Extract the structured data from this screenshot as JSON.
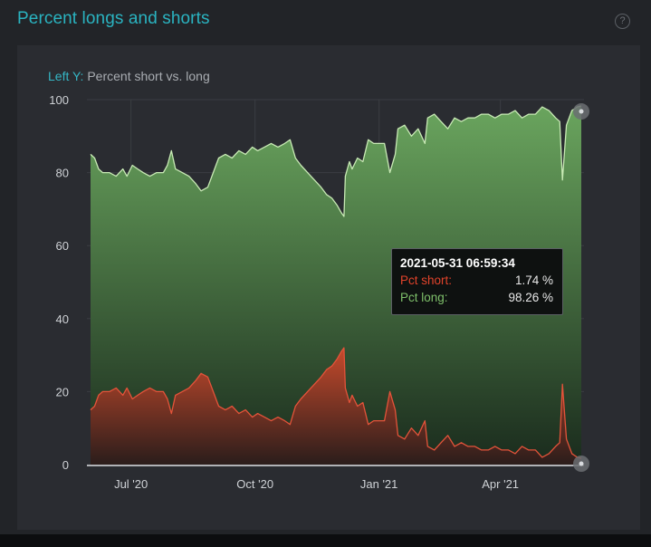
{
  "title": "Percent longs and shorts",
  "help_icon": "?",
  "y_axis_label": {
    "prefix": "Left Y:",
    "text": "Percent short vs. long"
  },
  "tooltip": {
    "timestamp": "2021-05-31 06:59:34",
    "rows": [
      {
        "label": "Pct short:",
        "value": "1.74 %"
      },
      {
        "label": "Pct long:",
        "value": "98.26 %"
      }
    ]
  },
  "colors": {
    "long_line": "#c8eab5",
    "long_fill_top": "#6aa55e",
    "long_fill_bottom": "#1a2b1d",
    "short_line": "#e4533a",
    "short_fill_top": "#c64a2c",
    "short_fill_bottom": "#2b1d1b",
    "accent": "#2ab3c0"
  },
  "chart_data": {
    "type": "area",
    "ylim": [
      0,
      100
    ],
    "y_ticks": [
      "0",
      "20",
      "40",
      "60",
      "80",
      "100"
    ],
    "x_ticks": [
      "Jul '20",
      "Oct '20",
      "Jan '21",
      "Apr '21"
    ],
    "x_range": [
      "2020-06-01",
      "2021-05-31"
    ],
    "grid": true,
    "series": [
      {
        "name": "Pct long",
        "points": [
          [
            "2020-06-01",
            85
          ],
          [
            "2020-06-04",
            84
          ],
          [
            "2020-06-07",
            81
          ],
          [
            "2020-06-10",
            80
          ],
          [
            "2020-06-15",
            80
          ],
          [
            "2020-06-20",
            79
          ],
          [
            "2020-06-25",
            81
          ],
          [
            "2020-06-28",
            79
          ],
          [
            "2020-07-02",
            82
          ],
          [
            "2020-07-06",
            81
          ],
          [
            "2020-07-10",
            80
          ],
          [
            "2020-07-15",
            79
          ],
          [
            "2020-07-20",
            80
          ],
          [
            "2020-07-25",
            80
          ],
          [
            "2020-07-28",
            82
          ],
          [
            "2020-07-31",
            86
          ],
          [
            "2020-08-03",
            81
          ],
          [
            "2020-08-08",
            80
          ],
          [
            "2020-08-13",
            79
          ],
          [
            "2020-08-18",
            77
          ],
          [
            "2020-08-22",
            75
          ],
          [
            "2020-08-27",
            76
          ],
          [
            "2020-08-31",
            80
          ],
          [
            "2020-09-04",
            84
          ],
          [
            "2020-09-09",
            85
          ],
          [
            "2020-09-14",
            84
          ],
          [
            "2020-09-19",
            86
          ],
          [
            "2020-09-24",
            85
          ],
          [
            "2020-09-29",
            87
          ],
          [
            "2020-10-03",
            86
          ],
          [
            "2020-10-08",
            87
          ],
          [
            "2020-10-13",
            88
          ],
          [
            "2020-10-18",
            87
          ],
          [
            "2020-10-23",
            88
          ],
          [
            "2020-10-27",
            89
          ],
          [
            "2020-10-31",
            84
          ],
          [
            "2020-11-04",
            82
          ],
          [
            "2020-11-09",
            80
          ],
          [
            "2020-11-14",
            78
          ],
          [
            "2020-11-19",
            76
          ],
          [
            "2020-11-23",
            74
          ],
          [
            "2020-11-27",
            73
          ],
          [
            "2020-12-01",
            71
          ],
          [
            "2020-12-04",
            69
          ],
          [
            "2020-12-06",
            68
          ],
          [
            "2020-12-07",
            79
          ],
          [
            "2020-12-10",
            83
          ],
          [
            "2020-12-12",
            81
          ],
          [
            "2020-12-16",
            84
          ],
          [
            "2020-12-20",
            83
          ],
          [
            "2020-12-24",
            89
          ],
          [
            "2020-12-28",
            88
          ],
          [
            "2021-01-01",
            88
          ],
          [
            "2021-01-05",
            88
          ],
          [
            "2021-01-09",
            80
          ],
          [
            "2021-01-13",
            85
          ],
          [
            "2021-01-15",
            92
          ],
          [
            "2021-01-20",
            93
          ],
          [
            "2021-01-25",
            90
          ],
          [
            "2021-01-30",
            92
          ],
          [
            "2021-02-04",
            88
          ],
          [
            "2021-02-06",
            95
          ],
          [
            "2021-02-11",
            96
          ],
          [
            "2021-02-16",
            94
          ],
          [
            "2021-02-21",
            92
          ],
          [
            "2021-02-26",
            95
          ],
          [
            "2021-03-03",
            94
          ],
          [
            "2021-03-08",
            95
          ],
          [
            "2021-03-13",
            95
          ],
          [
            "2021-03-18",
            96
          ],
          [
            "2021-03-23",
            96
          ],
          [
            "2021-03-28",
            95
          ],
          [
            "2021-04-02",
            96
          ],
          [
            "2021-04-07",
            96
          ],
          [
            "2021-04-12",
            97
          ],
          [
            "2021-04-17",
            95
          ],
          [
            "2021-04-22",
            96
          ],
          [
            "2021-04-27",
            96
          ],
          [
            "2021-05-02",
            98
          ],
          [
            "2021-05-07",
            97
          ],
          [
            "2021-05-12",
            95
          ],
          [
            "2021-05-15",
            94
          ],
          [
            "2021-05-17",
            78
          ],
          [
            "2021-05-20",
            93
          ],
          [
            "2021-05-24",
            97
          ],
          [
            "2021-05-28",
            98
          ],
          [
            "2021-05-31",
            98.26
          ]
        ]
      },
      {
        "name": "Pct short",
        "points": [
          [
            "2020-06-01",
            15
          ],
          [
            "2020-06-04",
            16
          ],
          [
            "2020-06-07",
            19
          ],
          [
            "2020-06-10",
            20
          ],
          [
            "2020-06-15",
            20
          ],
          [
            "2020-06-20",
            21
          ],
          [
            "2020-06-25",
            19
          ],
          [
            "2020-06-28",
            21
          ],
          [
            "2020-07-02",
            18
          ],
          [
            "2020-07-06",
            19
          ],
          [
            "2020-07-10",
            20
          ],
          [
            "2020-07-15",
            21
          ],
          [
            "2020-07-20",
            20
          ],
          [
            "2020-07-25",
            20
          ],
          [
            "2020-07-28",
            18
          ],
          [
            "2020-07-31",
            14
          ],
          [
            "2020-08-03",
            19
          ],
          [
            "2020-08-08",
            20
          ],
          [
            "2020-08-13",
            21
          ],
          [
            "2020-08-18",
            23
          ],
          [
            "2020-08-22",
            25
          ],
          [
            "2020-08-27",
            24
          ],
          [
            "2020-08-31",
            20
          ],
          [
            "2020-09-04",
            16
          ],
          [
            "2020-09-09",
            15
          ],
          [
            "2020-09-14",
            16
          ],
          [
            "2020-09-19",
            14
          ],
          [
            "2020-09-24",
            15
          ],
          [
            "2020-09-29",
            13
          ],
          [
            "2020-10-03",
            14
          ],
          [
            "2020-10-08",
            13
          ],
          [
            "2020-10-13",
            12
          ],
          [
            "2020-10-18",
            13
          ],
          [
            "2020-10-23",
            12
          ],
          [
            "2020-10-27",
            11
          ],
          [
            "2020-10-31",
            16
          ],
          [
            "2020-11-04",
            18
          ],
          [
            "2020-11-09",
            20
          ],
          [
            "2020-11-14",
            22
          ],
          [
            "2020-11-19",
            24
          ],
          [
            "2020-11-23",
            26
          ],
          [
            "2020-11-27",
            27
          ],
          [
            "2020-12-01",
            29
          ],
          [
            "2020-12-04",
            31
          ],
          [
            "2020-12-06",
            32
          ],
          [
            "2020-12-07",
            21
          ],
          [
            "2020-12-10",
            17
          ],
          [
            "2020-12-12",
            19
          ],
          [
            "2020-12-16",
            16
          ],
          [
            "2020-12-20",
            17
          ],
          [
            "2020-12-24",
            11
          ],
          [
            "2020-12-28",
            12
          ],
          [
            "2021-01-01",
            12
          ],
          [
            "2021-01-05",
            12
          ],
          [
            "2021-01-09",
            20
          ],
          [
            "2021-01-13",
            15
          ],
          [
            "2021-01-15",
            8
          ],
          [
            "2021-01-20",
            7
          ],
          [
            "2021-01-25",
            10
          ],
          [
            "2021-01-30",
            8
          ],
          [
            "2021-02-04",
            12
          ],
          [
            "2021-02-06",
            5
          ],
          [
            "2021-02-11",
            4
          ],
          [
            "2021-02-16",
            6
          ],
          [
            "2021-02-21",
            8
          ],
          [
            "2021-02-26",
            5
          ],
          [
            "2021-03-03",
            6
          ],
          [
            "2021-03-08",
            5
          ],
          [
            "2021-03-13",
            5
          ],
          [
            "2021-03-18",
            4
          ],
          [
            "2021-03-23",
            4
          ],
          [
            "2021-03-28",
            5
          ],
          [
            "2021-04-02",
            4
          ],
          [
            "2021-04-07",
            4
          ],
          [
            "2021-04-12",
            3
          ],
          [
            "2021-04-17",
            5
          ],
          [
            "2021-04-22",
            4
          ],
          [
            "2021-04-27",
            4
          ],
          [
            "2021-05-02",
            2
          ],
          [
            "2021-05-07",
            3
          ],
          [
            "2021-05-12",
            5
          ],
          [
            "2021-05-15",
            6
          ],
          [
            "2021-05-17",
            22
          ],
          [
            "2021-05-20",
            7
          ],
          [
            "2021-05-24",
            3
          ],
          [
            "2021-05-28",
            2
          ],
          [
            "2021-05-31",
            1.74
          ]
        ]
      }
    ]
  }
}
